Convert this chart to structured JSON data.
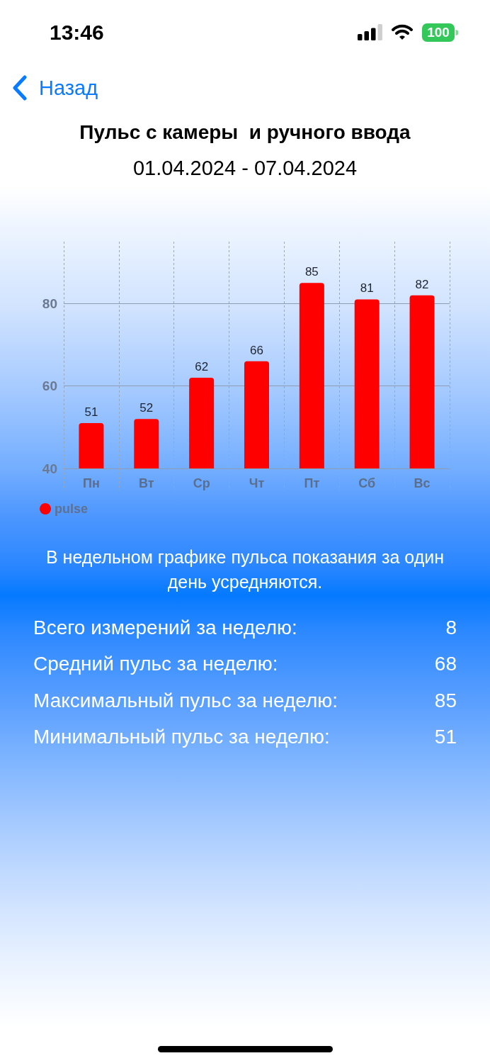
{
  "chart_data": {
    "type": "bar",
    "title": "Пульс с камеры  и ручного ввода",
    "subtitle": "01.04.2024 - 07.04.2024",
    "categories": [
      "Пн",
      "Вт",
      "Ср",
      "Чт",
      "Пт",
      "Сб",
      "Вс"
    ],
    "series": [
      {
        "name": "pulse",
        "color": "#ff0000",
        "values": [
          51,
          52,
          62,
          66,
          85,
          81,
          82
        ]
      }
    ],
    "ylim": [
      40,
      95
    ],
    "yticks": [
      40,
      60,
      80
    ],
    "grid": true,
    "legend": "bottom left",
    "data_labels": true,
    "annotations": [
      "13:46",
      "100",
      "Назад",
      "В недельном графике пульса показания за один день усредняются.",
      "Всего измерений за неделю:",
      "8",
      "Средний пульс за неделю:",
      "68",
      "Максимальный пульс за неделю:",
      "85",
      "Минимальный пульс за неделю:",
      "51"
    ]
  }
}
